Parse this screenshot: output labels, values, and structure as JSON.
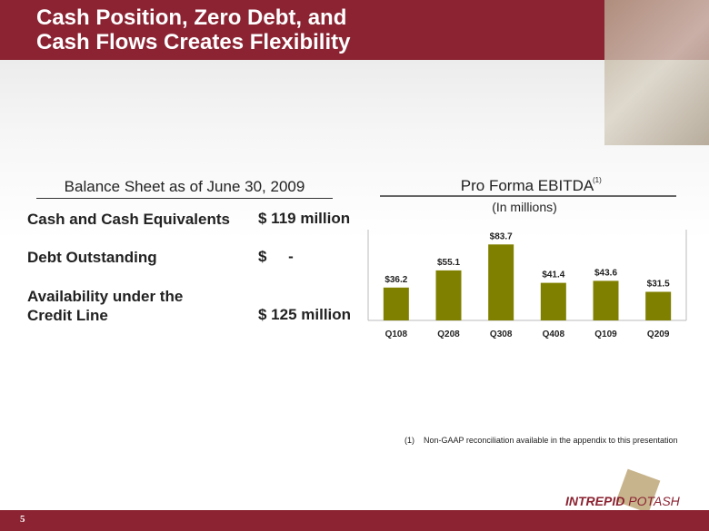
{
  "header": {
    "title_lines": [
      "Cash Position, Zero Debt, and",
      "Cash Flows Creates Flexibility"
    ]
  },
  "balance_sheet": {
    "heading": "Balance Sheet as of June 30, 2009",
    "rows": [
      {
        "label_lines": [
          "Cash and Cash Equivalents"
        ],
        "value": "$ 119 million"
      },
      {
        "label_lines": [
          "Debt Outstanding"
        ],
        "value": "$     -"
      },
      {
        "label_lines": [
          "Availability under the",
          "Credit Line"
        ],
        "value": "$ 125 million"
      }
    ]
  },
  "chart_data": {
    "type": "bar",
    "title": "Pro Forma EBITDA",
    "title_note": "(1)",
    "subtitle": "(In millions)",
    "categories": [
      "Q108",
      "Q208",
      "Q308",
      "Q408",
      "Q109",
      "Q209"
    ],
    "values": [
      36.2,
      55.1,
      83.7,
      41.4,
      43.6,
      31.5
    ],
    "value_labels": [
      "$36.2",
      "$55.1",
      "$83.7",
      "$41.4",
      "$43.6",
      "$31.5"
    ],
    "color": "#808000",
    "ylim": [
      0,
      100
    ]
  },
  "footnote": {
    "marker": "(1)",
    "text": "Non-GAAP reconciliation available in the appendix to this presentation"
  },
  "logo": {
    "word1": "INTREPID",
    "word2": "POTASH"
  },
  "page_number": "5"
}
